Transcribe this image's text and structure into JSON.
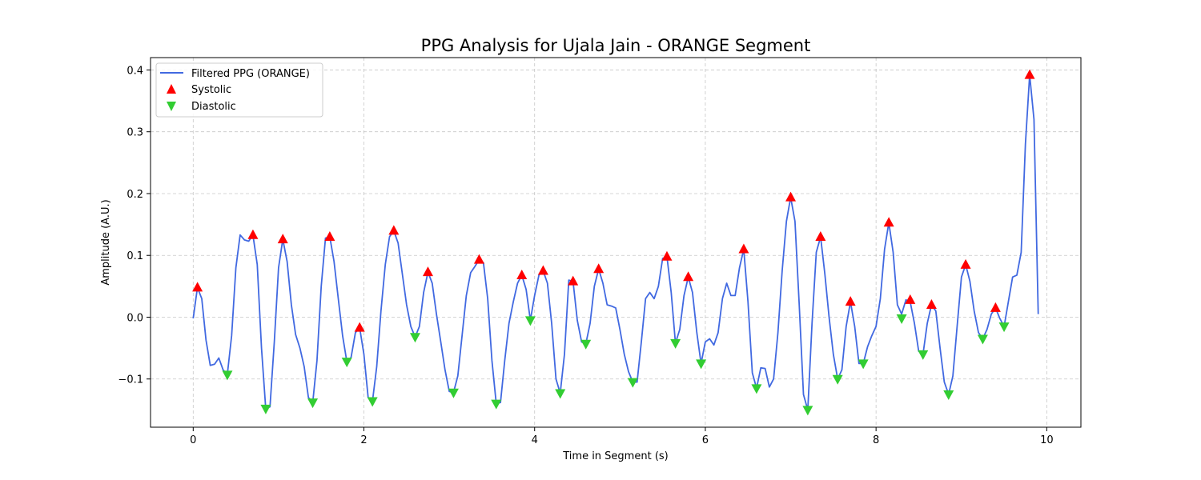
{
  "chart_data": {
    "type": "line",
    "title": "PPG Analysis for Ujala Jain - ORANGE Segment",
    "xlabel": "Time in Segment (s)",
    "ylabel": "Amplitude (A.U.)",
    "xlim": [
      -0.5,
      10.4
    ],
    "ylim": [
      -0.178,
      0.42
    ],
    "xticks": [
      0,
      2,
      4,
      6,
      8,
      10
    ],
    "xtick_labels": [
      "0",
      "2",
      "4",
      "6",
      "8",
      "10"
    ],
    "yticks": [
      -0.1,
      0.0,
      0.1,
      0.2,
      0.3,
      0.4
    ],
    "ytick_labels": [
      "−0.1",
      "0.0",
      "0.1",
      "0.2",
      "0.3",
      "0.4"
    ],
    "grid": true,
    "legend_position": "top-left",
    "colors": {
      "signal": "#4169e1",
      "systolic": "#ff0000",
      "diastolic": "#32cd32"
    },
    "series": [
      {
        "name": "Filtered PPG (ORANGE)",
        "kind": "line",
        "x": [
          0.0,
          0.05,
          0.1,
          0.15,
          0.2,
          0.25,
          0.3,
          0.35,
          0.4,
          0.45,
          0.5,
          0.55,
          0.6,
          0.65,
          0.7,
          0.75,
          0.8,
          0.85,
          0.9,
          0.95,
          1.0,
          1.05,
          1.1,
          1.15,
          1.2,
          1.25,
          1.3,
          1.35,
          1.4,
          1.45,
          1.5,
          1.55,
          1.6,
          1.65,
          1.7,
          1.75,
          1.8,
          1.85,
          1.9,
          1.95,
          2.0,
          2.05,
          2.1,
          2.15,
          2.2,
          2.25,
          2.3,
          2.35,
          2.4,
          2.45,
          2.5,
          2.55,
          2.6,
          2.65,
          2.7,
          2.75,
          2.8,
          2.85,
          2.9,
          2.95,
          3.0,
          3.05,
          3.1,
          3.15,
          3.2,
          3.25,
          3.3,
          3.35,
          3.4,
          3.45,
          3.5,
          3.55,
          3.6,
          3.65,
          3.7,
          3.75,
          3.8,
          3.85,
          3.9,
          3.95,
          4.0,
          4.05,
          4.1,
          4.15,
          4.2,
          4.25,
          4.3,
          4.35,
          4.4,
          4.45,
          4.5,
          4.55,
          4.6,
          4.65,
          4.7,
          4.75,
          4.8,
          4.85,
          4.9,
          4.95,
          5.0,
          5.05,
          5.1,
          5.15,
          5.2,
          5.25,
          5.3,
          5.35,
          5.4,
          5.45,
          5.5,
          5.55,
          5.6,
          5.65,
          5.7,
          5.75,
          5.8,
          5.85,
          5.9,
          5.95,
          6.0,
          6.05,
          6.1,
          6.15,
          6.2,
          6.25,
          6.3,
          6.35,
          6.4,
          6.45,
          6.5,
          6.55,
          6.6,
          6.65,
          6.7,
          6.75,
          6.8,
          6.85,
          6.9,
          6.95,
          7.0,
          7.05,
          7.1,
          7.15,
          7.2,
          7.25,
          7.3,
          7.35,
          7.4,
          7.45,
          7.5,
          7.55,
          7.6,
          7.65,
          7.7,
          7.75,
          7.8,
          7.85,
          7.9,
          7.95,
          8.0,
          8.05,
          8.1,
          8.15,
          8.2,
          8.25,
          8.3,
          8.35,
          8.4,
          8.45,
          8.5,
          8.55,
          8.6,
          8.65,
          8.7,
          8.75,
          8.8,
          8.85,
          8.9,
          8.95,
          9.0,
          9.05,
          9.1,
          9.15,
          9.2,
          9.25,
          9.3,
          9.35,
          9.4,
          9.45,
          9.5,
          9.55,
          9.6,
          9.65,
          9.7,
          9.75,
          9.8,
          9.85,
          9.9
        ],
        "y": [
          -0.002,
          0.048,
          0.03,
          -0.037,
          -0.078,
          -0.076,
          -0.066,
          -0.085,
          -0.093,
          -0.03,
          0.08,
          0.133,
          0.125,
          0.123,
          0.133,
          0.085,
          -0.05,
          -0.148,
          -0.145,
          -0.04,
          0.08,
          0.126,
          0.09,
          0.02,
          -0.028,
          -0.05,
          -0.08,
          -0.13,
          -0.138,
          -0.07,
          0.05,
          0.128,
          0.13,
          0.09,
          0.03,
          -0.03,
          -0.072,
          -0.065,
          -0.025,
          -0.017,
          -0.06,
          -0.13,
          -0.136,
          -0.08,
          0.01,
          0.085,
          0.13,
          0.14,
          0.12,
          0.07,
          0.02,
          -0.015,
          -0.032,
          -0.015,
          0.04,
          0.073,
          0.055,
          0.005,
          -0.04,
          -0.085,
          -0.12,
          -0.122,
          -0.095,
          -0.03,
          0.035,
          0.072,
          0.082,
          0.093,
          0.088,
          0.03,
          -0.07,
          -0.14,
          -0.138,
          -0.07,
          -0.01,
          0.025,
          0.055,
          0.068,
          0.045,
          -0.005,
          0.035,
          0.068,
          0.075,
          0.055,
          -0.01,
          -0.1,
          -0.123,
          -0.06,
          0.06,
          0.058,
          -0.005,
          -0.04,
          -0.043,
          -0.01,
          0.05,
          0.078,
          0.055,
          0.02,
          0.018,
          0.015,
          -0.02,
          -0.06,
          -0.088,
          -0.105,
          -0.105,
          -0.04,
          0.03,
          0.04,
          0.03,
          0.05,
          0.095,
          0.098,
          0.04,
          -0.042,
          -0.02,
          0.035,
          0.065,
          0.04,
          -0.025,
          -0.075,
          -0.04,
          -0.035,
          -0.045,
          -0.025,
          0.03,
          0.055,
          0.035,
          0.035,
          0.08,
          0.11,
          0.025,
          -0.09,
          -0.115,
          -0.082,
          -0.083,
          -0.113,
          -0.1,
          -0.025,
          0.075,
          0.155,
          0.194,
          0.155,
          0.02,
          -0.125,
          -0.15,
          -0.01,
          0.105,
          0.13,
          0.07,
          0.0,
          -0.06,
          -0.1,
          -0.085,
          -0.015,
          0.025,
          -0.015,
          -0.075,
          -0.075,
          -0.048,
          -0.03,
          -0.015,
          0.03,
          0.11,
          0.153,
          0.105,
          0.02,
          0.005,
          0.028,
          0.025,
          -0.01,
          -0.055,
          -0.06,
          -0.01,
          0.02,
          0.01,
          -0.05,
          -0.105,
          -0.125,
          -0.095,
          -0.015,
          0.065,
          0.085,
          0.058,
          0.01,
          -0.025,
          -0.035,
          -0.02,
          0.005,
          0.015,
          -0.002,
          -0.015,
          0.025,
          0.065,
          0.068,
          0.105,
          0.28,
          0.392,
          0.32,
          0.005
        ]
      },
      {
        "name": "Systolic",
        "kind": "marker-up",
        "x": [
          0.05,
          0.7,
          1.05,
          1.6,
          1.95,
          2.35,
          2.75,
          3.35,
          3.85,
          4.1,
          4.45,
          4.75,
          5.55,
          5.8,
          6.45,
          7.0,
          7.35,
          7.7,
          8.15,
          8.4,
          8.65,
          9.05,
          9.4,
          9.8
        ],
        "y": [
          0.048,
          0.133,
          0.126,
          0.13,
          -0.017,
          0.14,
          0.073,
          0.093,
          0.068,
          0.075,
          0.058,
          0.078,
          0.098,
          0.065,
          0.11,
          0.194,
          0.13,
          0.025,
          0.153,
          0.028,
          0.02,
          0.085,
          0.015,
          0.392
        ]
      },
      {
        "name": "Diastolic",
        "kind": "marker-down",
        "x": [
          0.4,
          0.85,
          1.4,
          1.8,
          2.1,
          2.6,
          3.05,
          3.55,
          3.95,
          4.3,
          4.6,
          5.15,
          5.65,
          5.95,
          6.6,
          7.2,
          7.55,
          7.85,
          8.3,
          8.55,
          8.85,
          9.25,
          9.5
        ],
        "y": [
          -0.093,
          -0.148,
          -0.138,
          -0.072,
          -0.136,
          -0.032,
          -0.122,
          -0.14,
          -0.005,
          -0.123,
          -0.043,
          -0.105,
          -0.042,
          -0.075,
          -0.115,
          -0.15,
          -0.1,
          -0.075,
          -0.002,
          -0.06,
          -0.125,
          -0.035,
          -0.015
        ]
      }
    ]
  }
}
